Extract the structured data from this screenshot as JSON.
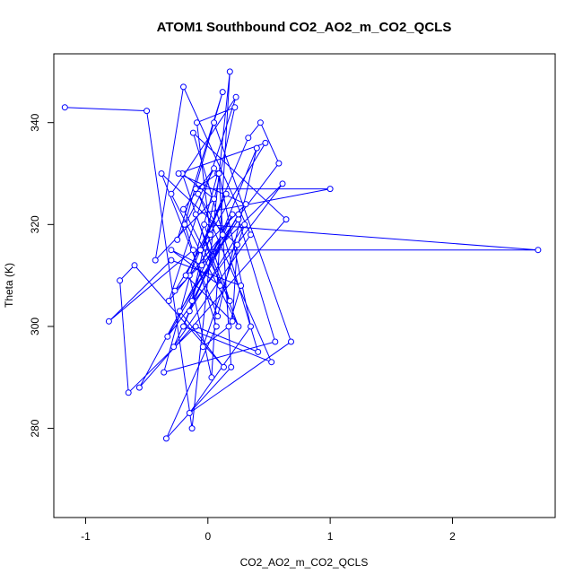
{
  "chart_data": {
    "type": "line",
    "title": "ATOM1 Southbound CO2_AO2_m_CO2_QCLS",
    "xlabel": "CO2_AO2_m_CO2_QCLS",
    "ylabel": "Theta (K)",
    "xlim": [
      -1.26,
      2.84
    ],
    "ylim": [
      262.5,
      353.5
    ],
    "x_ticks": [
      -1,
      0,
      1,
      2
    ],
    "x_tick_labels": [
      "-1",
      "0",
      "1",
      "2"
    ],
    "y_ticks": [
      280,
      300,
      320,
      340
    ],
    "y_tick_labels": [
      "280",
      "300",
      "320",
      "340"
    ],
    "grid": false,
    "legend": "none",
    "series_color": "#0000ff",
    "marker": "open-circle",
    "series": [
      {
        "x": [
          -1.17,
          -0.5,
          -0.13,
          0.18,
          0.03,
          -0.15,
          0.33,
          0.43,
          0.58,
          -0.05,
          -0.3,
          0.1,
          -0.21,
          0.05,
          -0.43,
          -0.2,
          0.35,
          -0.28,
          0.2,
          -0.56,
          0.64,
          -0.12,
          0.41,
          -0.1,
          -0.65,
          -0.72,
          -0.6,
          0.13,
          -0.23,
          0.25,
          0.55,
          -0.36,
          0.08,
          -0.1,
          1.0,
          -0.1,
          0.25,
          -0.3,
          0.23,
          -0.32,
          0.12,
          -0.08,
          0.52,
          -0.2,
          0.4,
          0.08,
          -0.38,
          0.24,
          0.2,
          -0.18,
          0.15,
          -0.06,
          0.31,
          -0.24,
          0.47,
          -0.27,
          0.61,
          -0.33,
          0.25,
          -0.13,
          0.02,
          -0.09,
          0.22,
          -0.15,
          0.3,
          -0.04,
          0.17,
          0.27,
          -0.3,
          -0.81,
          -0.12,
          2.7,
          -0.03,
          0.18,
          -0.2,
          0.05,
          -0.25,
          0.12,
          -0.19,
          0.07,
          -0.34,
          0.19,
          0.09,
          0.35,
          -0.15,
          0.68,
          0.05
        ],
        "y": [
          343,
          342.3,
          280,
          350,
          290,
          310,
          337,
          340,
          332,
          312,
          315,
          308,
          330,
          325,
          313,
          347,
          318,
          296,
          322,
          288,
          321,
          338,
          295,
          300,
          287,
          309,
          312,
          292,
          303,
          321,
          297,
          291,
          330,
          327,
          327,
          322,
          300,
          326,
          345,
          305,
          318,
          326,
          293,
          300,
          335,
          302,
          330,
          316,
          301,
          310,
          326,
          315,
          324,
          330,
          336,
          307,
          328,
          298,
          322,
          305,
          318,
          340,
          343,
          303,
          320,
          296,
          300,
          308,
          313,
          301,
          315,
          315,
          320,
          305,
          323,
          331,
          317,
          346,
          320,
          300,
          278,
          292,
          330,
          300,
          283,
          297,
          340
        ]
      }
    ]
  }
}
